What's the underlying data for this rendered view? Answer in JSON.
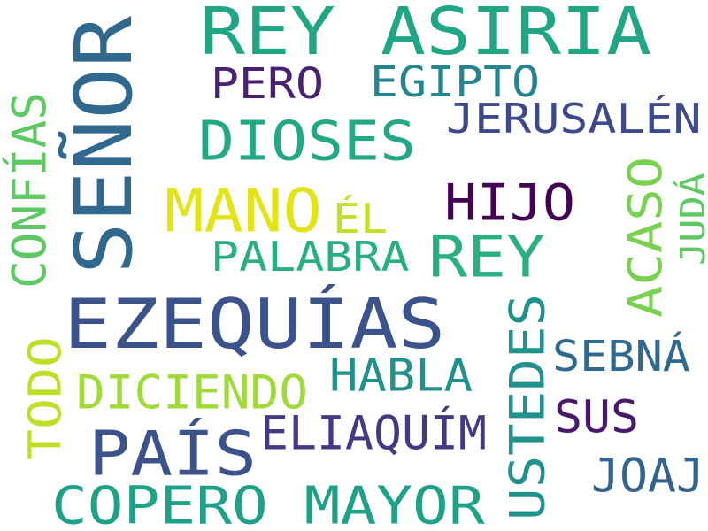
{
  "words": [
    {
      "id": "senor",
      "text": "SEÑOR",
      "color": "#31688e"
    },
    {
      "id": "rey-asiria",
      "text": "REY ASIRIA",
      "color": "#21a685"
    },
    {
      "id": "ezequias",
      "text": "EZEQUÍAS",
      "color": "#3b528b"
    },
    {
      "id": "copero-mayor",
      "text": "COPERO MAYOR",
      "color": "#1fa187"
    },
    {
      "id": "pais",
      "text": "PAÍS",
      "color": "#3b528b"
    },
    {
      "id": "mano",
      "text": "MANO",
      "color": "#e2e418"
    },
    {
      "id": "dioses",
      "text": "DIOSES",
      "color": "#22a884"
    },
    {
      "id": "rey",
      "text": "REY",
      "color": "#2ab07f"
    },
    {
      "id": "hijo",
      "text": "HIJO",
      "color": "#440154"
    },
    {
      "id": "ustedes",
      "text": "USTEDES",
      "color": "#21918c"
    },
    {
      "id": "jerusalen",
      "text": "JERUSALÉN",
      "color": "#3e4989"
    },
    {
      "id": "egipto",
      "text": "EGIPTO",
      "color": "#25858e"
    },
    {
      "id": "pero",
      "text": "PERO",
      "color": "#482173"
    },
    {
      "id": "palabra",
      "text": "PALABRA",
      "color": "#29af7f"
    },
    {
      "id": "el",
      "text": "ÉL",
      "color": "#c2df23"
    },
    {
      "id": "acaso",
      "text": "ACASO",
      "color": "#7ad151"
    },
    {
      "id": "juda",
      "text": "JUDÁ",
      "color": "#5ec962"
    },
    {
      "id": "confias",
      "text": "CONFÍAS",
      "color": "#5ec962"
    },
    {
      "id": "todo",
      "text": "TODO",
      "color": "#bddf26"
    },
    {
      "id": "diciendo",
      "text": "DICIENDO",
      "color": "#a0da39"
    },
    {
      "id": "habla",
      "text": "HABLA",
      "color": "#21918c"
    },
    {
      "id": "eliaquim",
      "text": "ELIAQUÍM",
      "color": "#443983"
    },
    {
      "id": "sebna",
      "text": "SEBNÁ",
      "color": "#31688e"
    },
    {
      "id": "sus",
      "text": "SUS",
      "color": "#48186a"
    },
    {
      "id": "joaj",
      "text": "JOAJ",
      "color": "#33638d"
    }
  ]
}
